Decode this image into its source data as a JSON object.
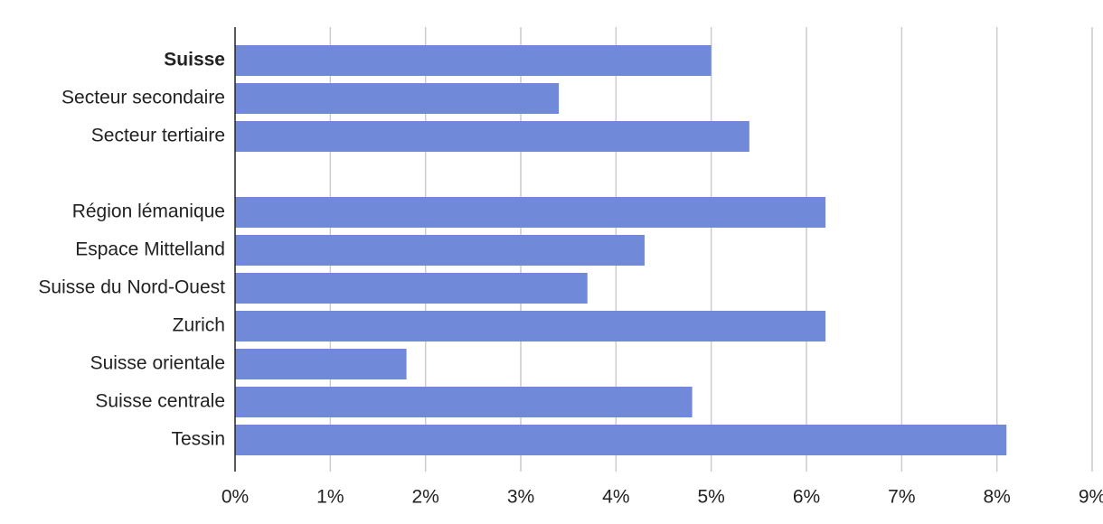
{
  "chart_data": {
    "type": "bar",
    "orientation": "horizontal",
    "categories": [
      "Suisse",
      "Secteur secondaire",
      "Secteur tertiaire",
      null,
      "Région lémanique",
      "Espace Mittelland",
      "Suisse du Nord-Ouest",
      "Zurich",
      "Suisse orientale",
      "Suisse centrale",
      "Tessin"
    ],
    "values": [
      5.0,
      3.4,
      5.4,
      null,
      6.2,
      4.3,
      3.7,
      6.2,
      1.8,
      4.8,
      8.1
    ],
    "color": "#7089d9",
    "xlim": [
      0,
      9
    ],
    "xticks": [
      {
        "value": 0,
        "label": "0%"
      },
      {
        "value": 1,
        "label": "1%"
      },
      {
        "value": 2,
        "label": "2%"
      },
      {
        "value": 3,
        "label": "3%"
      },
      {
        "value": 4,
        "label": "4%"
      },
      {
        "value": 5,
        "label": "5%"
      },
      {
        "value": 6,
        "label": "6%"
      },
      {
        "value": 7,
        "label": "7%"
      },
      {
        "value": 8,
        "label": "8%"
      },
      {
        "value": 9,
        "label": "9%"
      }
    ],
    "grid": true
  }
}
